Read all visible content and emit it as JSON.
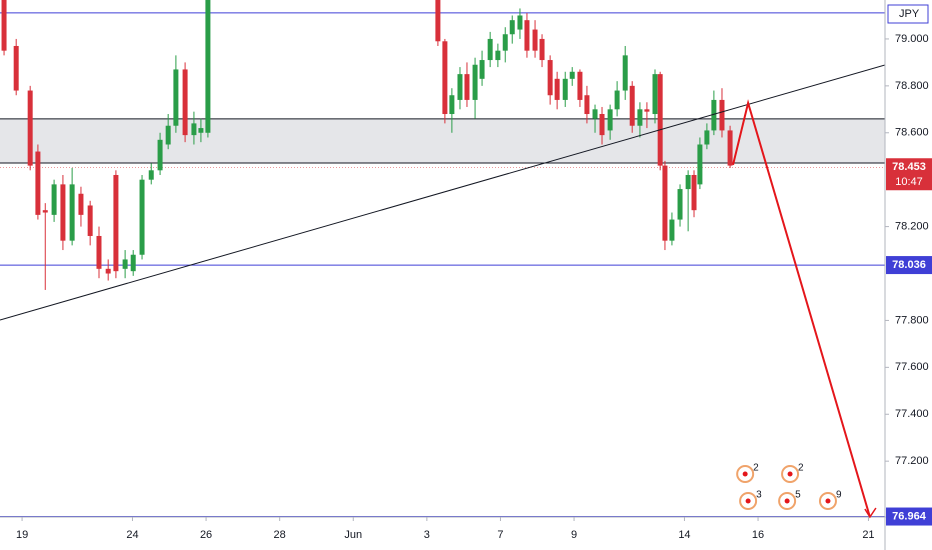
{
  "chart_data": {
    "type": "candlestick",
    "symbol": "JPY",
    "x": [
      -0.49,
      -0.16,
      0.22,
      0.43,
      0.63,
      0.87,
      1.11,
      1.36,
      1.6,
      1.85,
      2.09,
      2.34,
      2.55,
      2.8,
      3.02,
      3.26,
      3.51,
      3.75,
      3.97,
      4.18,
      4.43,
      4.67,
      4.86,
      5.05,
      11.3,
      11.49,
      11.68,
      11.9,
      12.09,
      12.31,
      12.5,
      12.72,
      12.93,
      13.13,
      13.32,
      13.53,
      13.72,
      13.94,
      14.13,
      14.35,
      14.54,
      14.76,
      14.95,
      15.16,
      15.35,
      15.57,
      15.76,
      15.98,
      16.17,
      16.39,
      16.58,
      16.79,
      16.98,
      17.2,
      17.34,
      17.47,
      17.66,
      17.88,
      18.1,
      18.26,
      18.42,
      18.61,
      18.8,
      19.02,
      19.24
    ],
    "open": [
      79.17,
      78.97,
      78.78,
      78.52,
      78.27,
      78.25,
      78.38,
      78.14,
      78.34,
      78.29,
      78.16,
      78.02,
      78.42,
      78.02,
      78.01,
      78.08,
      78.4,
      78.44,
      78.55,
      78.63,
      78.87,
      78.59,
      78.6,
      78.6,
      79.2,
      78.99,
      78.68,
      78.74,
      78.85,
      78.74,
      78.83,
      78.91,
      78.91,
      78.95,
      79.02,
      79.04,
      79.08,
      79.04,
      79.0,
      78.91,
      78.83,
      78.74,
      78.83,
      78.86,
      78.76,
      78.66,
      78.68,
      78.61,
      78.7,
      78.78,
      78.8,
      78.63,
      78.7,
      78.68,
      78.85,
      78.46,
      78.14,
      78.23,
      78.36,
      78.42,
      78.38,
      78.55,
      78.61,
      78.74,
      78.61
    ],
    "high": [
      79.17,
      79.0,
      78.8,
      78.55,
      78.3,
      78.4,
      78.42,
      78.45,
      78.37,
      78.31,
      78.2,
      78.06,
      78.44,
      78.1,
      78.1,
      78.42,
      78.47,
      78.6,
      78.68,
      78.93,
      78.9,
      78.69,
      78.66,
      79.25,
      79.25,
      79.0,
      78.79,
      78.88,
      78.9,
      78.92,
      78.95,
      79.03,
      78.98,
      79.05,
      79.1,
      79.13,
      79.11,
      79.08,
      79.02,
      78.93,
      78.86,
      78.86,
      78.88,
      78.87,
      78.8,
      78.72,
      78.71,
      78.72,
      78.82,
      78.97,
      78.82,
      78.73,
      78.73,
      78.87,
      78.86,
      78.48,
      78.26,
      78.38,
      78.44,
      78.44,
      78.58,
      78.64,
      78.78,
      78.79,
      78.63
    ],
    "low": [
      78.93,
      78.76,
      78.44,
      78.23,
      77.93,
      78.22,
      78.1,
      78.12,
      78.2,
      78.12,
      77.98,
      77.97,
      77.98,
      77.98,
      77.99,
      78.06,
      78.38,
      78.42,
      78.53,
      78.6,
      78.56,
      78.55,
      78.56,
      78.58,
      78.97,
      78.64,
      78.6,
      78.7,
      78.71,
      78.66,
      78.8,
      78.88,
      78.88,
      78.9,
      78.98,
      79.0,
      78.92,
      78.92,
      78.88,
      78.72,
      78.7,
      78.71,
      78.8,
      78.71,
      78.64,
      78.6,
      78.55,
      78.57,
      78.67,
      78.74,
      78.6,
      78.58,
      78.62,
      78.64,
      78.44,
      78.1,
      78.12,
      78.2,
      78.18,
      78.24,
      78.36,
      78.53,
      78.59,
      78.58,
      78.45
    ],
    "close": [
      78.95,
      78.78,
      78.46,
      78.25,
      78.26,
      78.38,
      78.14,
      78.38,
      78.25,
      78.16,
      78.02,
      78.0,
      78.01,
      78.06,
      78.08,
      78.4,
      78.44,
      78.57,
      78.63,
      78.87,
      78.59,
      78.64,
      78.62,
      79.2,
      78.99,
      78.68,
      78.76,
      78.85,
      78.74,
      78.89,
      78.91,
      79.0,
      78.95,
      79.02,
      79.08,
      79.1,
      78.95,
      78.95,
      78.91,
      78.76,
      78.74,
      78.83,
      78.86,
      78.74,
      78.68,
      78.7,
      78.59,
      78.7,
      78.78,
      78.93,
      78.63,
      78.7,
      78.69,
      78.85,
      78.46,
      78.14,
      78.23,
      78.36,
      78.42,
      78.27,
      78.55,
      78.61,
      78.74,
      78.61,
      78.46
    ],
    "up_color": "#2a9d48",
    "down_color": "#d8303a",
    "xlim": [
      -0.6,
      23.45
    ],
    "ylim": [
      76.962,
      79.166
    ],
    "xticks": [
      {
        "value": 0,
        "label": "19"
      },
      {
        "value": 3,
        "label": "24"
      },
      {
        "value": 5,
        "label": "26"
      },
      {
        "value": 7,
        "label": "28"
      },
      {
        "value": 9,
        "label": "Jun"
      },
      {
        "value": 11,
        "label": "3"
      },
      {
        "value": 13,
        "label": "7"
      },
      {
        "value": 15,
        "label": "9"
      },
      {
        "value": 18,
        "label": "14"
      },
      {
        "value": 20,
        "label": "16"
      },
      {
        "value": 23,
        "label": "21"
      }
    ],
    "yticks": [
      {
        "value": 79,
        "label": "79.000"
      },
      {
        "value": 78.8,
        "label": "78.800"
      },
      {
        "value": 78.6,
        "label": "78.600"
      },
      {
        "value": 78.2,
        "label": "78.200"
      },
      {
        "value": 77.8,
        "label": "77.800"
      },
      {
        "value": 77.6,
        "label": "77.600"
      },
      {
        "value": 77.4,
        "label": "77.400"
      },
      {
        "value": 77.2,
        "label": "77.200"
      }
    ],
    "horizontal_lines": [
      {
        "value": 79.111
      },
      {
        "value": 78.036,
        "label": "78.036"
      },
      {
        "value": 76.964,
        "label": "76.964"
      }
    ],
    "line_color": "#3f3fd6",
    "zone": [
      78.471,
      78.659
    ],
    "trendline": {
      "x": [
        -0.6,
        23.45
      ],
      "y": [
        77.802,
        78.889
      ]
    },
    "projection": {
      "x": [
        19.32,
        19.73,
        23.04
      ],
      "y": [
        78.463,
        78.727,
        76.962
      ],
      "color": "#e4161b"
    },
    "last_price": {
      "value": 78.453,
      "label": "78.453",
      "countdown": "10:47"
    },
    "events_top": [
      {
        "x": 19.65,
        "count": 2
      },
      {
        "x": 20.87,
        "count": 2
      }
    ],
    "events_bottom": [
      {
        "x": 19.73,
        "count": 3
      },
      {
        "x": 20.79,
        "count": 5
      },
      {
        "x": 21.9,
        "count": 9
      }
    ]
  }
}
